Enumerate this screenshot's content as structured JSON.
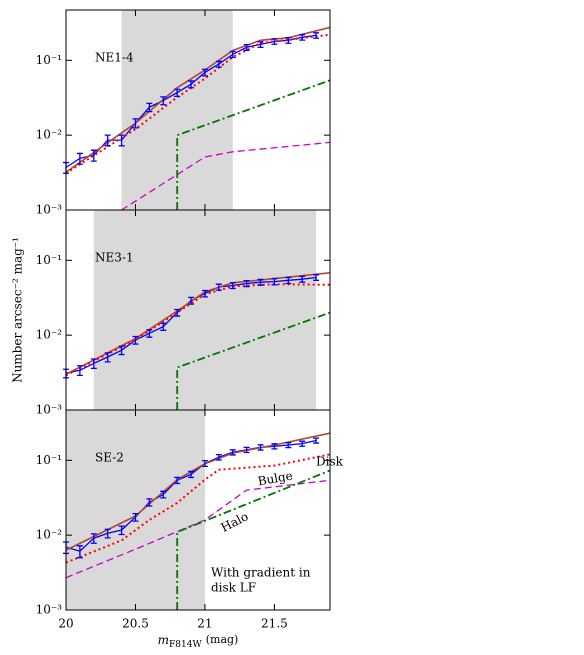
{
  "chart_data": [
    {
      "type": "line",
      "label": "NE1-4",
      "yscale": "log",
      "xlim": [
        20,
        21.9
      ],
      "ylim": [
        0.001,
        0.47
      ],
      "yticks": [
        {
          "value": 0.001,
          "label": "10⁻³"
        },
        {
          "value": 0.01,
          "label": "10⁻²"
        },
        {
          "value": 0.1,
          "label": "10⁻¹"
        }
      ],
      "shade": [
        20.4,
        21.2
      ],
      "shade_color": "#d9d9d9",
      "series": [
        {
          "style": "errorbar",
          "color": "#0000ff",
          "x": [
            20.0,
            20.1,
            20.2,
            20.3,
            20.4,
            20.5,
            20.6,
            20.7,
            20.8,
            20.9,
            21.0,
            21.1,
            21.2,
            21.3,
            21.4,
            21.5,
            21.6,
            21.7,
            21.8
          ],
          "values": [
            0.0037,
            0.0049,
            0.0054,
            0.0086,
            0.0086,
            0.0145,
            0.0236,
            0.029,
            0.037,
            0.048,
            0.069,
            0.089,
            0.12,
            0.149,
            0.163,
            0.179,
            0.185,
            0.203,
            0.215
          ],
          "errors": [
            0.0006,
            0.0008,
            0.0009,
            0.0014,
            0.0014,
            0.002,
            0.003,
            0.0035,
            0.004,
            0.005,
            0.007,
            0.008,
            0.011,
            0.013,
            0.014,
            0.015,
            0.016,
            0.017,
            0.018
          ]
        },
        {
          "style": "solid",
          "color": "#b5452a",
          "x": [
            20.0,
            20.5,
            20.8,
            21.0,
            21.2,
            21.4,
            21.6,
            21.9
          ],
          "values": [
            0.0032,
            0.0145,
            0.043,
            0.074,
            0.135,
            0.185,
            0.2,
            0.275
          ]
        },
        {
          "style": "dotted",
          "color": "#ff0000",
          "x": [
            20.0,
            20.5,
            20.8,
            21.0,
            21.2,
            21.4,
            21.9
          ],
          "values": [
            0.0031,
            0.012,
            0.032,
            0.057,
            0.11,
            0.17,
            0.22
          ]
        },
        {
          "style": "dashed",
          "color": "#cc00cc",
          "x": [
            20.4,
            21.0,
            21.2,
            21.9
          ],
          "values": [
            0.001,
            0.0051,
            0.006,
            0.008
          ]
        },
        {
          "style": "dashdot",
          "color": "#007700",
          "x": [
            20.8,
            20.8,
            21.9
          ],
          "values": [
            0.001,
            0.01,
            0.054
          ]
        }
      ]
    },
    {
      "type": "line",
      "label": "NE3-1",
      "yscale": "log",
      "xlim": [
        20,
        21.9
      ],
      "ylim": [
        0.001,
        0.47
      ],
      "yticks": [
        {
          "value": 0.001,
          "label": "10⁻³"
        },
        {
          "value": 0.01,
          "label": "10⁻²"
        },
        {
          "value": 0.1,
          "label": "10⁻¹"
        }
      ],
      "shade": [
        20.2,
        21.8
      ],
      "shade_color": "#d9d9d9",
      "ylabel": "Number arcsec⁻² mag⁻¹",
      "series": [
        {
          "style": "errorbar",
          "color": "#0000ff",
          "x": [
            20.0,
            20.1,
            20.2,
            20.3,
            20.4,
            20.5,
            20.6,
            20.7,
            20.8,
            20.9,
            21.0,
            21.1,
            21.2,
            21.3,
            21.4,
            21.5,
            21.6,
            21.7,
            21.8
          ],
          "values": [
            0.0031,
            0.0034,
            0.0042,
            0.0051,
            0.0063,
            0.0086,
            0.0106,
            0.013,
            0.02,
            0.029,
            0.036,
            0.044,
            0.046,
            0.049,
            0.051,
            0.052,
            0.054,
            0.056,
            0.059
          ],
          "errors": [
            0.0004,
            0.0005,
            0.0006,
            0.0007,
            0.0008,
            0.001,
            0.0012,
            0.0014,
            0.002,
            0.003,
            0.0035,
            0.004,
            0.004,
            0.0045,
            0.0045,
            0.005,
            0.005,
            0.005,
            0.005
          ]
        },
        {
          "style": "solid",
          "color": "#b5452a",
          "x": [
            20.0,
            20.5,
            20.8,
            21.0,
            21.2,
            21.5,
            21.9
          ],
          "values": [
            0.003,
            0.009,
            0.021,
            0.038,
            0.05,
            0.057,
            0.068
          ]
        },
        {
          "style": "dotted",
          "color": "#ff0000",
          "x": [
            20.0,
            20.5,
            20.8,
            21.0,
            21.2,
            21.5,
            21.9
          ],
          "values": [
            0.0029,
            0.0087,
            0.02,
            0.035,
            0.045,
            0.048,
            0.047
          ]
        },
        {
          "style": "dashdot",
          "color": "#007700",
          "x": [
            20.8,
            20.8,
            21.9
          ],
          "values": [
            0.001,
            0.0037,
            0.02
          ]
        }
      ]
    },
    {
      "type": "line",
      "label": "SE-2",
      "yscale": "log",
      "xlim": [
        20,
        21.9
      ],
      "ylim": [
        0.001,
        0.47
      ],
      "xticks": [
        20,
        20.5,
        21,
        21.5
      ],
      "yticks": [
        {
          "value": 0.001,
          "label": "10⁻³"
        },
        {
          "value": 0.01,
          "label": "10⁻²"
        },
        {
          "value": 0.1,
          "label": "10⁻¹"
        }
      ],
      "shade": [
        20.0,
        21.0
      ],
      "shade_color": "#d9d9d9",
      "xlabel": {
        "text": "m",
        "sub": "F814W",
        "unit": "(mag)"
      },
      "note": [
        "With gradient in",
        "disk LF"
      ],
      "series": [
        {
          "style": "errorbar",
          "color": "#0000ff",
          "x": [
            20.0,
            20.1,
            20.2,
            20.3,
            20.4,
            20.5,
            20.6,
            20.7,
            20.8,
            20.9,
            21.0,
            21.1,
            21.2,
            21.3,
            21.4,
            21.5,
            21.6,
            21.7,
            21.8
          ],
          "values": [
            0.0069,
            0.0061,
            0.0091,
            0.0106,
            0.0117,
            0.0174,
            0.0275,
            0.035,
            0.054,
            0.065,
            0.091,
            0.11,
            0.128,
            0.138,
            0.149,
            0.154,
            0.16,
            0.167,
            0.184
          ],
          "errors": [
            0.0012,
            0.0011,
            0.0013,
            0.0014,
            0.0015,
            0.002,
            0.003,
            0.0035,
            0.005,
            0.006,
            0.008,
            0.009,
            0.01,
            0.011,
            0.012,
            0.012,
            0.012,
            0.013,
            0.014
          ]
        },
        {
          "style": "solid",
          "color": "#b5452a",
          "x": [
            20.0,
            20.5,
            20.8,
            21.0,
            21.2,
            21.5,
            21.9
          ],
          "values": [
            0.0063,
            0.018,
            0.055,
            0.09,
            0.125,
            0.16,
            0.23
          ]
        },
        {
          "name": "Disk",
          "style": "dotted",
          "color": "#ff0000",
          "x": [
            20.0,
            20.4,
            20.6,
            20.8,
            21.0,
            21.1,
            21.5,
            21.9
          ],
          "values": [
            0.0043,
            0.0085,
            0.016,
            0.027,
            0.055,
            0.075,
            0.085,
            0.12
          ]
        },
        {
          "name": "Bulge",
          "style": "dashed",
          "color": "#cc00cc",
          "x": [
            20.0,
            20.5,
            21.0,
            21.3,
            21.9
          ],
          "values": [
            0.0027,
            0.0065,
            0.016,
            0.04,
            0.054
          ]
        },
        {
          "name": "Halo",
          "style": "dashdot",
          "color": "#007700",
          "x": [
            20.8,
            20.8,
            21.9
          ],
          "values": [
            0.001,
            0.011,
            0.073
          ]
        }
      ]
    }
  ]
}
